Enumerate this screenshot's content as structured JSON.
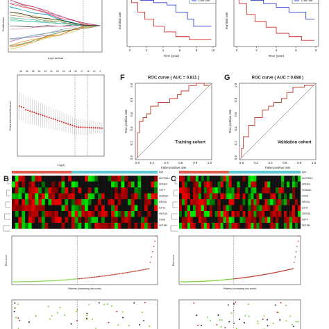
{
  "panel_a": {
    "y_label": "Coefficients",
    "x_label": "Log Lambda"
  },
  "panel_cv": {
    "y_label": "Partial Likelihood Deviance",
    "x_label": "Log(λ)",
    "top_counts": [
      "36",
      "36",
      "35",
      "34",
      "33",
      "31",
      "29",
      "26",
      "24",
      "20",
      "17",
      "15",
      "10",
      "9"
    ]
  },
  "panel_d": {
    "y_label": "Survival rate",
    "x_label": "Time (year)",
    "legend": "Low risk",
    "x_ticks": [
      "0",
      "2",
      "4",
      "6",
      "8",
      "10"
    ]
  },
  "panel_e": {
    "y_label": "Survival rate",
    "x_label": "Time (year)",
    "legend": "Low risk",
    "x_ticks": [
      "0",
      "2",
      "4",
      "6",
      "8"
    ]
  },
  "panel_f": {
    "letter": "F",
    "title": "ROC curve ( AUC = 0.811 )",
    "y_label": "True positive rate",
    "x_label": "False positive rate",
    "cohort": "Training cohort",
    "ticks": [
      "0.0",
      "0.2",
      "0.4",
      "0.6",
      "0.8",
      "1.0"
    ]
  },
  "panel_g": {
    "letter": "G",
    "title": "ROC curve ( AUC = 0.688 )",
    "y_label": "True positive rate",
    "x_label": "False positive rate",
    "cohort": "Validation cohort",
    "ticks": [
      "0.0",
      "0.2",
      "0.4",
      "0.6",
      "0.8",
      "1.0"
    ]
  },
  "panel_b": {
    "letter": "B",
    "genes": [
      "AK075510",
      "SPINK4",
      "GETP",
      "SEMA6D",
      "MEX3A",
      "EZH2",
      "ZNF616",
      "CSAD",
      "DEF280"
    ],
    "legend_title": "type",
    "x_label": "Patients (increasing risk score)",
    "y_label": "Risk score"
  },
  "panel_c": {
    "letter": "C",
    "genes": [
      "AK075510",
      "SPINK4",
      "SEMA6D",
      "CSAD",
      "MEX3A",
      "EZH2",
      "ZNF616",
      "GETP",
      "DEF280"
    ],
    "legend_title": "type",
    "x_label": "Patients (increasing risk score)",
    "y_label": "Risk score"
  }
}
